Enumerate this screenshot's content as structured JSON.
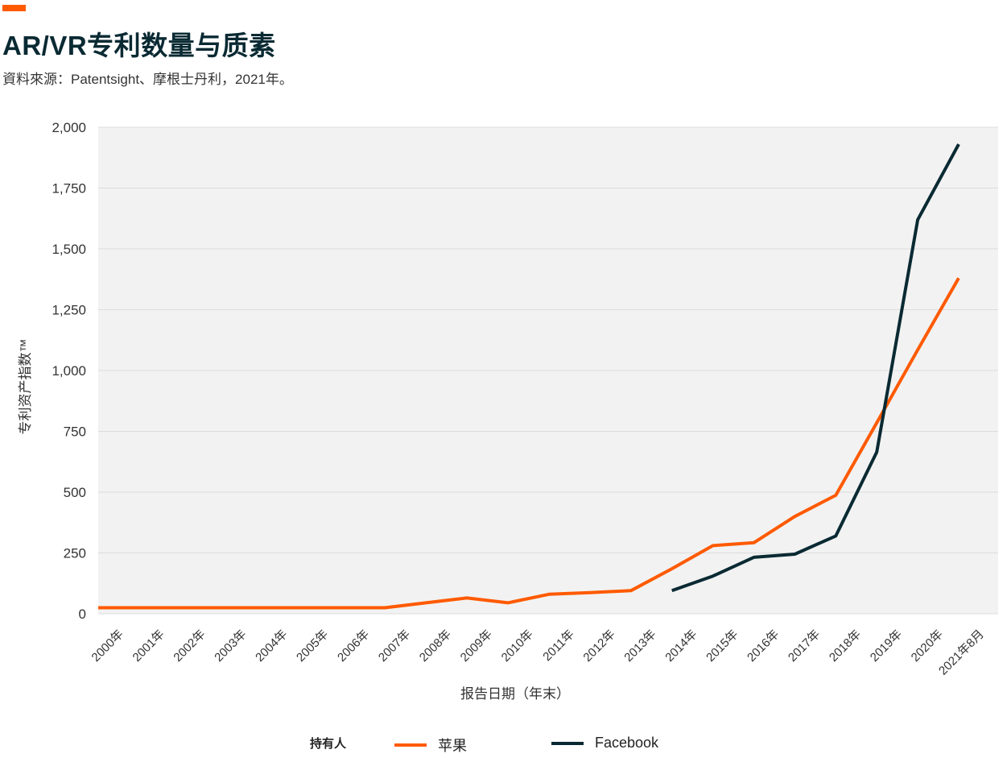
{
  "header": {
    "title": "AR/VR专利数量与质素",
    "source": "資料來源：Patentsight、摩根士丹利，2021年。"
  },
  "colors": {
    "accent": "#ff5a00",
    "apple": "#ff5a00",
    "facebook": "#0a2a33",
    "plot_bg": "#f2f2f2"
  },
  "legend": {
    "title": "持有人"
  },
  "chart_data": {
    "type": "line",
    "title": "AR/VR专利数量与质素",
    "xlabel": "报告日期（年末）",
    "ylabel": "专利资产指数™",
    "ylim": [
      0,
      2000
    ],
    "yticks": [
      0,
      250,
      500,
      750,
      1000,
      1250,
      1500,
      1750,
      2000
    ],
    "ytick_labels": [
      "0",
      "250",
      "500",
      "750",
      "1,000",
      "1,250",
      "1,500",
      "1,750",
      "2,000"
    ],
    "categories": [
      "2000年",
      "2001年",
      "2002年",
      "2003年",
      "2004年",
      "2005年",
      "2006年",
      "2007年",
      "2008年",
      "2009年",
      "2010年",
      "2011年",
      "2012年",
      "2013年",
      "2014年",
      "2015年",
      "2016年",
      "2017年",
      "2018年",
      "2019年",
      "2020年",
      "2021年8月"
    ],
    "grid": true,
    "legend_position": "bottom",
    "series": [
      {
        "name": "苹果",
        "color": "#ff5a00",
        "values": [
          25,
          25,
          25,
          25,
          25,
          25,
          25,
          25,
          45,
          65,
          45,
          80,
          87,
          95,
          185,
          280,
          292,
          400,
          487,
          785,
          1085,
          1380
        ]
      },
      {
        "name": "Facebook",
        "color": "#0a2a33",
        "values": [
          null,
          null,
          null,
          null,
          null,
          null,
          null,
          null,
          null,
          null,
          null,
          null,
          null,
          null,
          95,
          155,
          232,
          245,
          320,
          665,
          1620,
          1930
        ]
      }
    ]
  }
}
